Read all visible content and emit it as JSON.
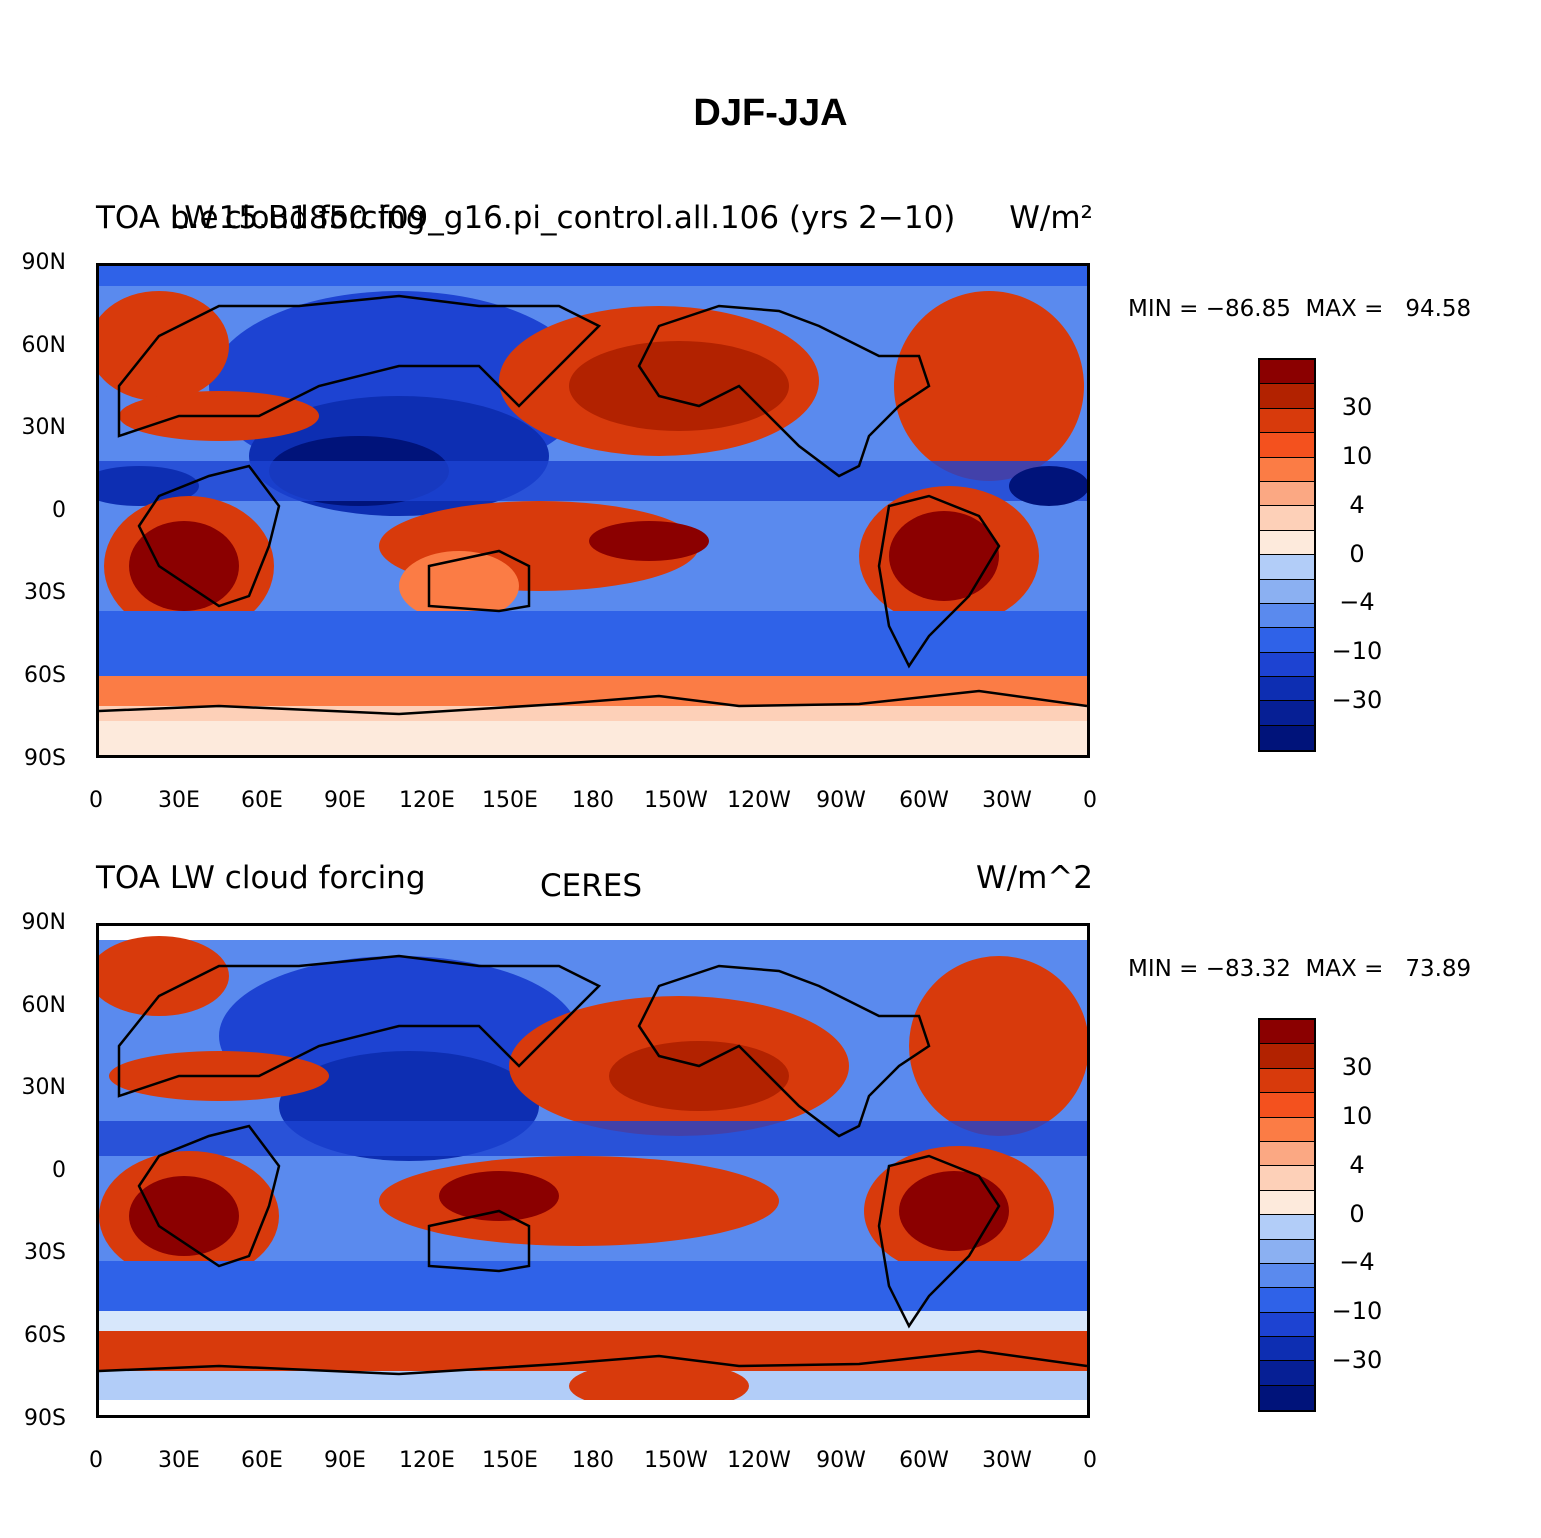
{
  "title": "DJF-JJA",
  "y_axis_labels": [
    "90N",
    "60N",
    "30N",
    "0",
    "30S",
    "60S",
    "90S"
  ],
  "x_axis_labels": [
    "0",
    "30E",
    "60E",
    "90E",
    "120E",
    "150E",
    "180",
    "150W",
    "120W",
    "90W",
    "60W",
    "30W",
    "0"
  ],
  "colorbar": {
    "colors": [
      "#8b0000",
      "#b22200",
      "#d83a0c",
      "#f4511e",
      "#fb7c45",
      "#fba883",
      "#fdd0b8",
      "#fdeadc",
      "#d7e7fb",
      "#b2cdf8",
      "#8bb0f2",
      "#5a8aee",
      "#2f62e8",
      "#1d43d2",
      "#0d2eb2",
      "#061f95",
      "#00137a"
    ],
    "tick_labels": [
      "30",
      "10",
      "4",
      "0",
      "−4",
      "−10",
      "−30"
    ]
  },
  "panels": [
    {
      "left_label": "TOA LW cloud forcing",
      "overlap_label": "b.e15.B1850.f09_g16.pi_control.all.106 (yrs 2−10)",
      "right_label": "W/m²",
      "min_max": "MIN = −86.85  MAX =   94.58"
    },
    {
      "left_label": "TOA LW cloud forcing",
      "center_label": "CERES",
      "right_label": "W/m^2",
      "min_max": "MIN = −83.32  MAX =   73.89"
    }
  ]
}
